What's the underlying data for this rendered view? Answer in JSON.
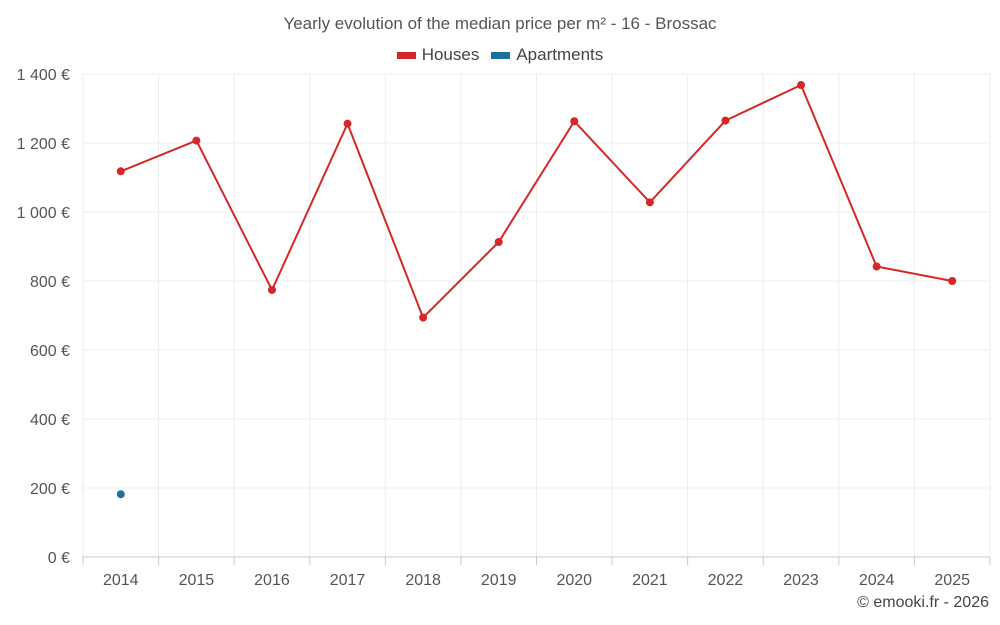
{
  "chart_data": {
    "type": "line",
    "title": "Yearly evolution of the median price per m² - 16 - Brossac",
    "xlabel": "",
    "ylabel": "",
    "categories": [
      "2014",
      "2015",
      "2016",
      "2017",
      "2018",
      "2019",
      "2020",
      "2021",
      "2022",
      "2023",
      "2024",
      "2025"
    ],
    "y_ticks": [
      0,
      200,
      400,
      600,
      800,
      1000,
      1200,
      1400
    ],
    "y_tick_labels": [
      "0 €",
      "200 €",
      "400 €",
      "600 €",
      "800 €",
      "1 000 €",
      "1 200 €",
      "1 400 €"
    ],
    "ylim": [
      0,
      1400
    ],
    "grid": true,
    "legend_position": "top-center",
    "series": [
      {
        "name": "Houses",
        "color": "#d62728",
        "values": [
          1118,
          1207,
          774,
          1256,
          694,
          913,
          1263,
          1028,
          1265,
          1368,
          842,
          800
        ]
      },
      {
        "name": "Apartments",
        "color": "#1f6ea0",
        "values": [
          182,
          null,
          null,
          null,
          null,
          null,
          null,
          null,
          null,
          null,
          null,
          null
        ]
      }
    ]
  },
  "credit": "© emooki.fr - 2026"
}
